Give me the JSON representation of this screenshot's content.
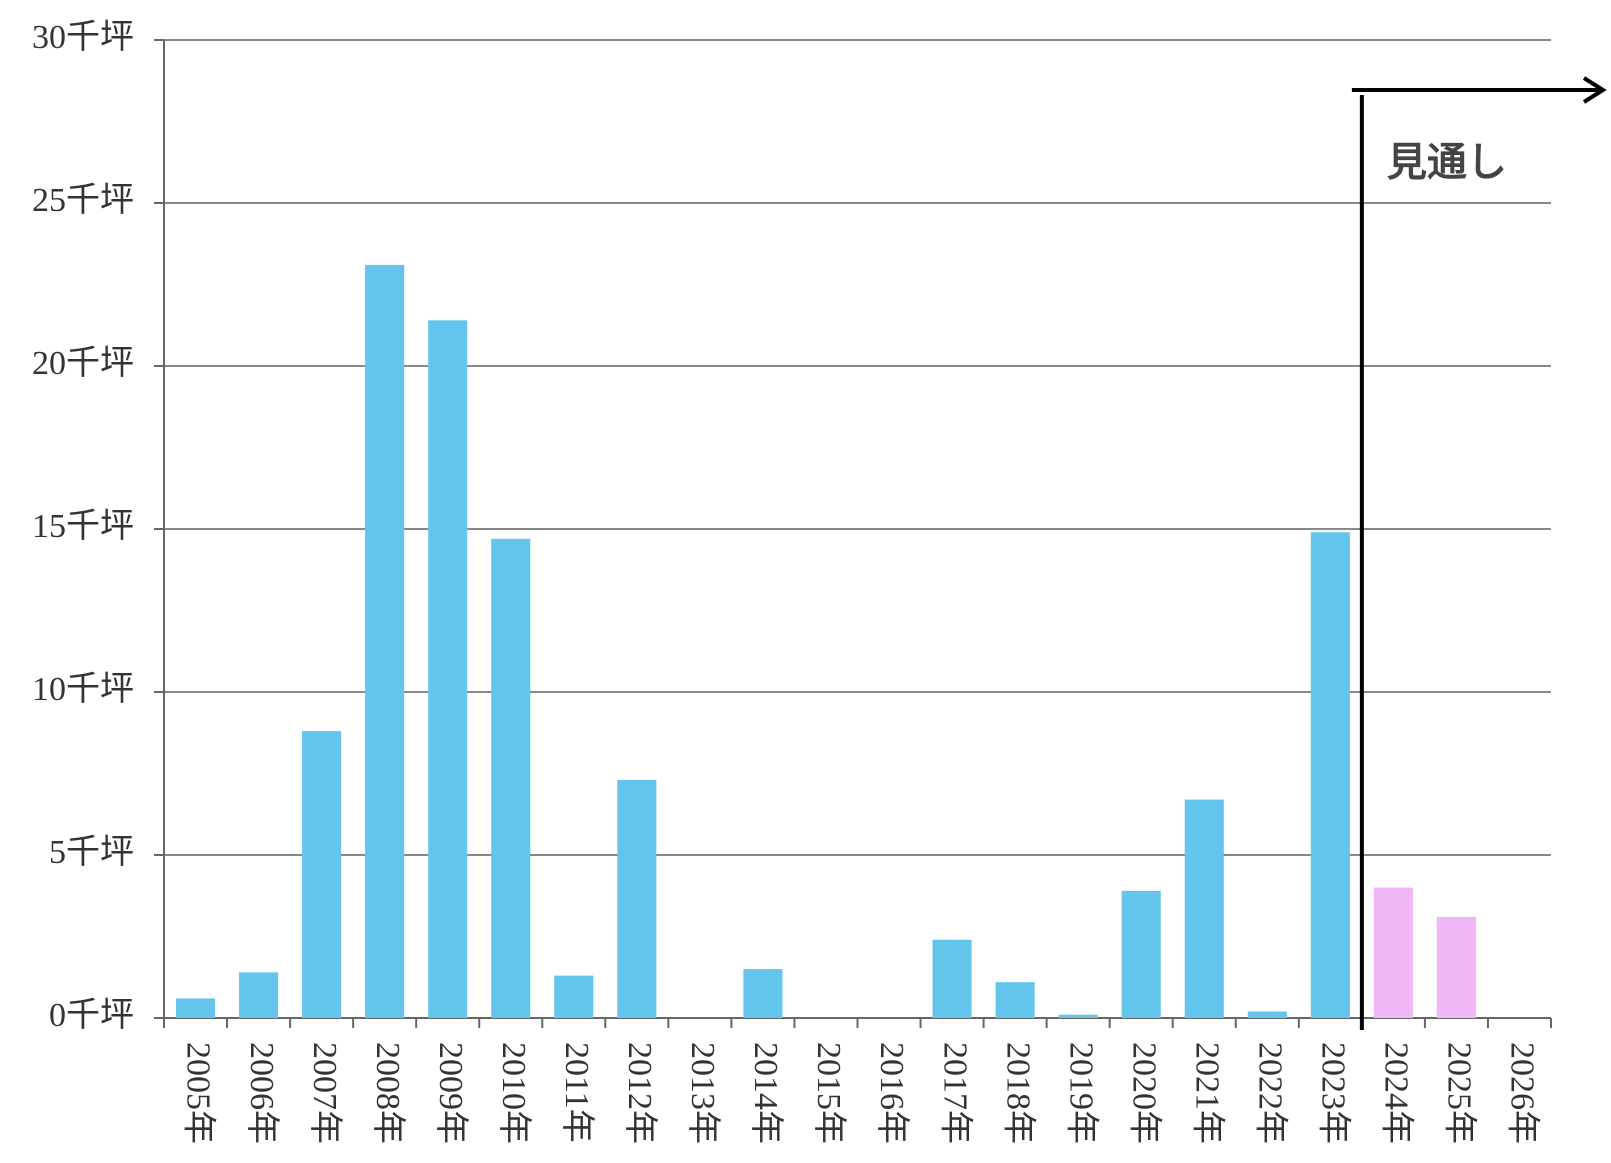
{
  "chart_data": {
    "type": "bar",
    "categories": [
      "2005年",
      "2006年",
      "2007年",
      "2008年",
      "2009年",
      "2010年",
      "2011年",
      "2012年",
      "2013年",
      "2014年",
      "2015年",
      "2016年",
      "2017年",
      "2018年",
      "2019年",
      "2020年",
      "2021年",
      "2022年",
      "2023年",
      "2024年",
      "2025年",
      "2026年"
    ],
    "values": [
      0.6,
      1.4,
      8.8,
      23.1,
      21.4,
      14.7,
      1.3,
      7.3,
      0,
      1.5,
      0,
      0,
      2.4,
      1.1,
      0.1,
      3.9,
      6.7,
      0.2,
      14.9,
      4.0,
      3.1,
      null
    ],
    "colors": [
      "#63c4ec",
      "#63c4ec",
      "#63c4ec",
      "#63c4ec",
      "#63c4ec",
      "#63c4ec",
      "#63c4ec",
      "#63c4ec",
      "#63c4ec",
      "#63c4ec",
      "#63c4ec",
      "#63c4ec",
      "#63c4ec",
      "#63c4ec",
      "#63c4ec",
      "#63c4ec",
      "#63c4ec",
      "#63c4ec",
      "#63c4ec",
      "#f0b6f5",
      "#f0b6f5",
      "#f0b6f5"
    ],
    "ylim": [
      0,
      30
    ],
    "yticks": [
      {
        "value": 0,
        "label": "0千坪"
      },
      {
        "value": 5,
        "label": "5千坪"
      },
      {
        "value": 10,
        "label": "10千坪"
      },
      {
        "value": 15,
        "label": "15千坪"
      },
      {
        "value": 20,
        "label": "20千坪"
      },
      {
        "value": 25,
        "label": "25千坪"
      },
      {
        "value": 30,
        "label": "30千坪"
      }
    ],
    "grid": true,
    "annotation": "見通し"
  }
}
